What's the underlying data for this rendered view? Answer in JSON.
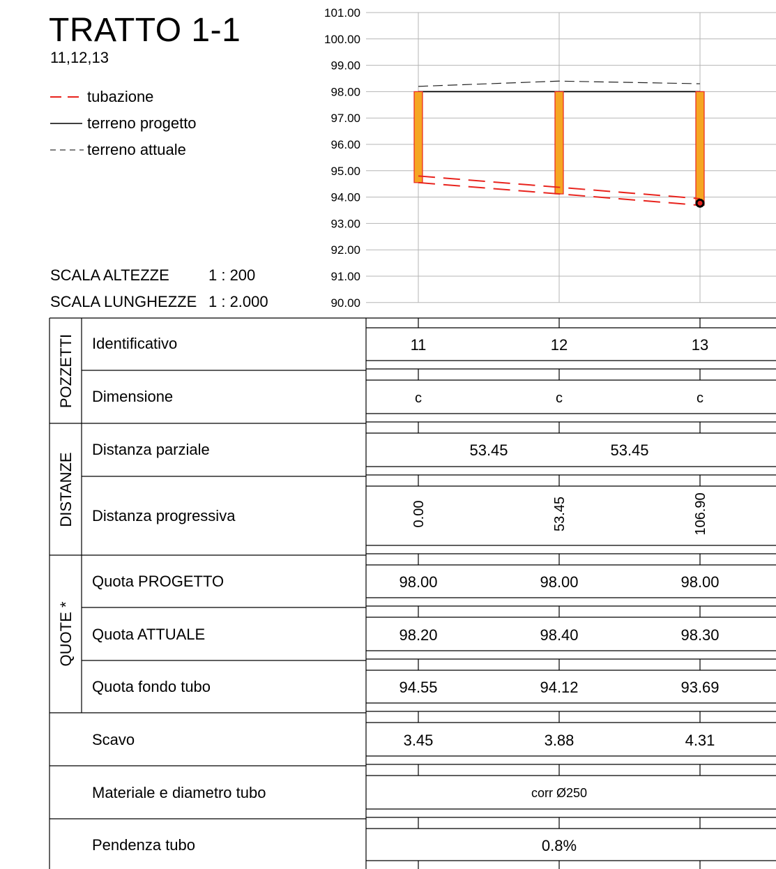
{
  "header": {
    "title": "TRATTO 1-1",
    "subtitle": "11,12,13",
    "scales": [
      {
        "label": "SCALA ALTEZZE",
        "value": "1 : 200"
      },
      {
        "label": "SCALA LUNGHEZZE",
        "value": "1 : 2.000"
      }
    ]
  },
  "legend": [
    {
      "label": "tubazione",
      "style": "dashed",
      "color": "#e8231d"
    },
    {
      "label": "terreno progetto",
      "style": "solid",
      "color": "#000000"
    },
    {
      "label": "terreno attuale",
      "style": "dashed",
      "color": "#000000"
    }
  ],
  "profile": {
    "y_ticks": [
      "101.00",
      "100.00",
      "99.00",
      "98.00",
      "97.00",
      "96.00",
      "95.00",
      "94.00",
      "93.00",
      "92.00",
      "91.00",
      "90.00"
    ],
    "stations": [
      {
        "id": "11",
        "dist": 0.0,
        "progetto": 98.0,
        "attuale": 98.2,
        "fondo": 94.55
      },
      {
        "id": "12",
        "dist": 53.45,
        "progetto": 98.0,
        "attuale": 98.4,
        "fondo": 94.12
      },
      {
        "id": "13",
        "dist": 106.9,
        "progetto": 98.0,
        "attuale": 98.3,
        "fondo": 93.69
      }
    ],
    "manhole_color": "#f5a623",
    "manhole_border": "#e8231d"
  },
  "table": {
    "groups": {
      "pozzetti": "POZZETTI",
      "distanze": "DISTANZE",
      "quote": "QUOTE *"
    },
    "rows": {
      "identificativo": {
        "label": "Identificativo",
        "values": [
          "11",
          "12",
          "13"
        ]
      },
      "dimensione": {
        "label": "Dimensione",
        "values": [
          "c",
          "c",
          "c"
        ]
      },
      "distanza_parziale": {
        "label": "Distanza parziale",
        "values": [
          "53.45",
          "53.45"
        ]
      },
      "distanza_progressiva": {
        "label": "Distanza progressiva",
        "values": [
          "0.00",
          "53.45",
          "106.90"
        ]
      },
      "quota_progetto": {
        "label": "Quota PROGETTO",
        "values": [
          "98.00",
          "98.00",
          "98.00"
        ]
      },
      "quota_attuale": {
        "label": "Quota ATTUALE",
        "values": [
          "98.20",
          "98.40",
          "98.30"
        ]
      },
      "quota_fondo": {
        "label": "Quota fondo tubo",
        "values": [
          "94.55",
          "94.12",
          "93.69"
        ]
      },
      "scavo": {
        "label": "Scavo",
        "values": [
          "3.45",
          "3.88",
          "4.31"
        ]
      },
      "materiale": {
        "label": "Materiale e diametro tubo",
        "value": "corr Ø250"
      },
      "pendenza": {
        "label": "Pendenza tubo",
        "value": "0.8%"
      }
    }
  }
}
